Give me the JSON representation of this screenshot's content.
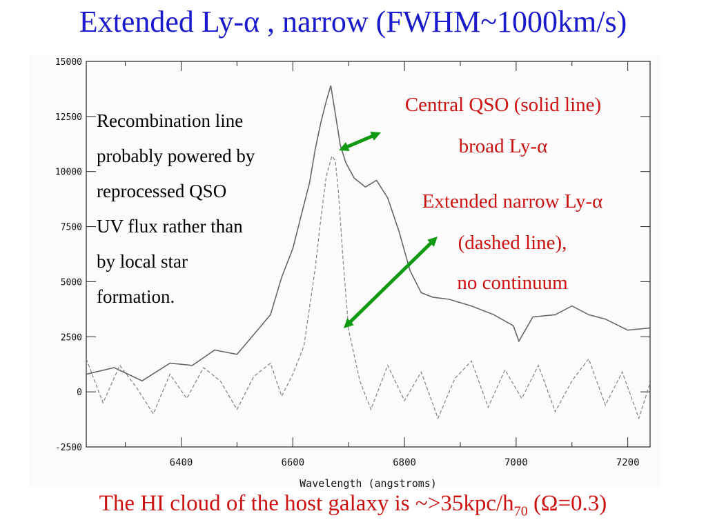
{
  "title": {
    "main": "Extended Ly-α , narrow ",
    "detail": "(FWHM~1000km/s)"
  },
  "note": {
    "lines": [
      "Recombination line",
      "probably powered by",
      "reprocessed QSO",
      "UV flux rather than",
      "by local star",
      "formation."
    ]
  },
  "annotations": {
    "qso_line1": "Central QSO (solid line)",
    "qso_line2": "broad Ly-α",
    "ext_line1": "Extended narrow Ly-α",
    "ext_line2": "(dashed line),",
    "ext_line3": "no continuum"
  },
  "footer": {
    "text": "The HI cloud of the host galaxy is ~>35kpc/h",
    "sub": "70",
    "tail": " (Ω=0.3)"
  },
  "colors": {
    "title": "#1a1acc",
    "annotation": "#cc1111",
    "arrow": "#119911",
    "solid_line": "#666666",
    "dashed_line": "#888888"
  },
  "chart_data": {
    "type": "line",
    "xlabel": "Wavelength (angstroms)",
    "ylabel": "",
    "xlim": [
      6230,
      7240
    ],
    "ylim": [
      -2500,
      15000
    ],
    "xticks": [
      6400,
      6600,
      6800,
      7000,
      7200
    ],
    "yticks": [
      15000,
      12500,
      10000,
      7500,
      5000,
      2500,
      0,
      -2500
    ],
    "grid": false,
    "series": [
      {
        "style": "solid",
        "x": [
          6230,
          6280,
          6330,
          6380,
          6420,
          6460,
          6500,
          6530,
          6560,
          6580,
          6600,
          6615,
          6630,
          6640,
          6650,
          6660,
          6668,
          6675,
          6685,
          6695,
          6710,
          6730,
          6750,
          6770,
          6790,
          6810,
          6830,
          6850,
          6880,
          6920,
          6960,
          6995,
          7005,
          7030,
          7070,
          7100,
          7130,
          7160,
          7200,
          7240
        ],
        "y": [
          800,
          1100,
          500,
          1300,
          1200,
          1900,
          1700,
          2600,
          3500,
          5200,
          6500,
          8000,
          9500,
          11000,
          12200,
          13200,
          13900,
          12800,
          11200,
          10400,
          9700,
          9300,
          9600,
          8800,
          7300,
          5500,
          4500,
          4300,
          4200,
          3900,
          3500,
          3000,
          2300,
          3400,
          3500,
          3900,
          3500,
          3300,
          2800,
          2900
        ]
      },
      {
        "style": "dashed",
        "x": [
          6230,
          6260,
          6290,
          6320,
          6350,
          6380,
          6410,
          6440,
          6470,
          6500,
          6530,
          6560,
          6580,
          6600,
          6620,
          6640,
          6650,
          6660,
          6670,
          6676,
          6682,
          6690,
          6700,
          6720,
          6740,
          6770,
          6800,
          6830,
          6860,
          6890,
          6920,
          6950,
          6980,
          7010,
          7040,
          7070,
          7100,
          7130,
          7160,
          7190,
          7220,
          7240
        ],
        "y": [
          1500,
          -500,
          1200,
          200,
          -1000,
          800,
          -300,
          1100,
          500,
          -800,
          700,
          1300,
          -200,
          800,
          2100,
          5600,
          7800,
          9800,
          10700,
          10500,
          9000,
          6000,
          2800,
          500,
          -800,
          1200,
          -400,
          900,
          -1200,
          600,
          1400,
          -700,
          1000,
          -300,
          1200,
          -900,
          500,
          1500,
          -600,
          900,
          -1200,
          400
        ]
      }
    ]
  }
}
